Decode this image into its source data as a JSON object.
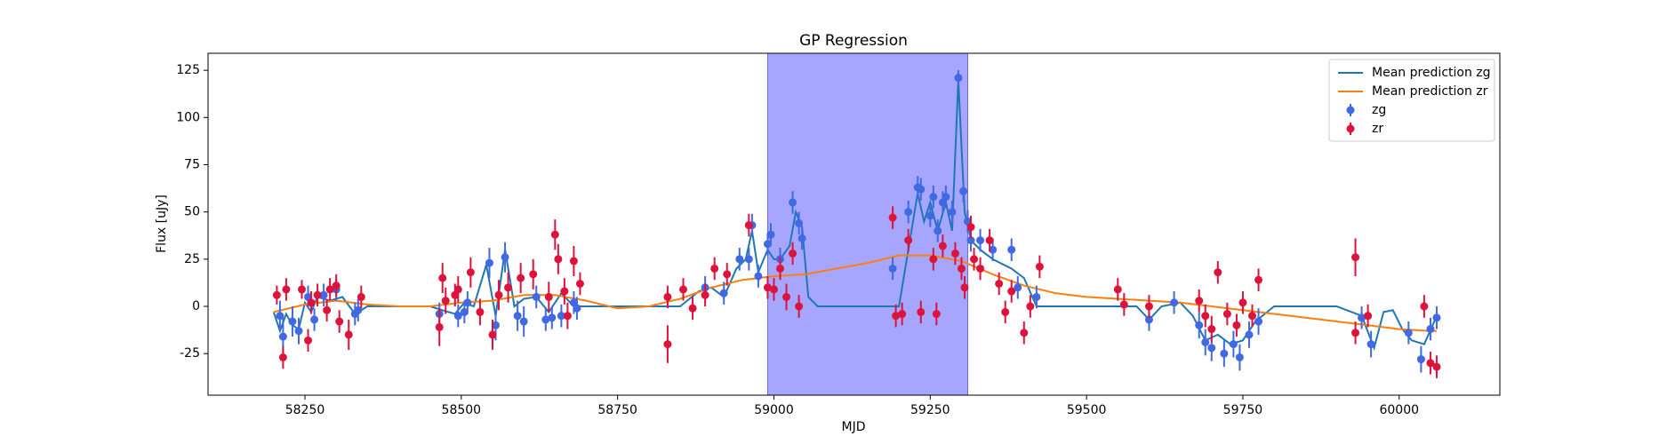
{
  "chart_data": {
    "type": "errorbar",
    "title": "GP Regression",
    "xlabel": "MJD",
    "ylabel": "Flux [uJy]",
    "xlim": [
      58095,
      60161
    ],
    "ylim": [
      -47,
      134
    ],
    "xticks": [
      58250,
      58500,
      58750,
      59000,
      59250,
      59500,
      59750,
      60000
    ],
    "yticks": [
      -25,
      0,
      25,
      50,
      75,
      100,
      125
    ],
    "shaded_x": [
      58990,
      59310
    ],
    "shaded_color": "#0000ff",
    "legend": "upper right",
    "series": [
      {
        "name": "Mean prediction zg",
        "type": "line",
        "color": "#1f77b4",
        "x": [
          58200,
          58210,
          58220,
          58230,
          58240,
          58250,
          58260,
          58270,
          58290,
          58310,
          58330,
          58350,
          58400,
          58450,
          58470,
          58490,
          58505,
          58520,
          58540,
          58555,
          58570,
          58585,
          58600,
          58620,
          58640,
          58660,
          58680,
          58700,
          58850,
          58880,
          58900,
          58920,
          58940,
          58955,
          58965,
          58975,
          58990,
          59000,
          59010,
          59025,
          59035,
          59045,
          59055,
          59070,
          59200,
          59215,
          59230,
          59240,
          59250,
          59262,
          59275,
          59285,
          59295,
          59305,
          59315,
          59330,
          59350,
          59380,
          59400,
          59420,
          59450,
          59580,
          59600,
          59620,
          59650,
          59670,
          59690,
          59710,
          59730,
          59750,
          59770,
          59800,
          59900,
          59940,
          59960,
          59975,
          59990,
          60005,
          60020,
          60040,
          60060
        ],
        "values": [
          -3,
          -13,
          -4,
          -10,
          -12,
          2,
          -3,
          5,
          3,
          5,
          -4,
          0,
          0,
          0,
          -2,
          -4,
          2,
          0,
          22,
          -5,
          30,
          0,
          4,
          5,
          -3,
          7,
          0,
          0,
          0,
          8,
          10,
          5,
          20,
          25,
          40,
          18,
          30,
          25,
          25,
          32,
          50,
          42,
          5,
          0,
          0,
          30,
          60,
          45,
          55,
          40,
          55,
          40,
          120,
          50,
          35,
          30,
          25,
          20,
          15,
          0,
          0,
          0,
          -7,
          0,
          2,
          -5,
          -18,
          -15,
          -20,
          -18,
          -8,
          0,
          0,
          -5,
          -22,
          -3,
          -2,
          -12,
          -18,
          -20,
          -5
        ]
      },
      {
        "name": "Mean prediction zr",
        "type": "line",
        "color": "#ff7f0e",
        "x": [
          58200,
          58250,
          58300,
          58350,
          58400,
          58450,
          58500,
          58550,
          58600,
          58650,
          58700,
          58750,
          58800,
          58850,
          58900,
          58950,
          59000,
          59050,
          59100,
          59150,
          59200,
          59250,
          59300,
          59350,
          59400,
          59450,
          59500,
          59550,
          59600,
          59650,
          59700,
          59750,
          59800,
          59850,
          59900,
          59950,
          60000,
          60050,
          60060
        ],
        "values": [
          -3,
          1,
          3,
          1,
          0,
          0,
          2,
          3,
          6,
          6,
          3,
          -1,
          0,
          4,
          10,
          14,
          16,
          17,
          20,
          23,
          27,
          27,
          24,
          17,
          11,
          7,
          5,
          4,
          3,
          2,
          0,
          -2,
          -4,
          -6,
          -8,
          -10,
          -12,
          -13,
          -13
        ]
      },
      {
        "name": "zg",
        "type": "errorbar",
        "color": "#4169e1",
        "x": [
          58210,
          58215,
          58230,
          58240,
          58255,
          58265,
          58280,
          58300,
          58330,
          58335,
          58465,
          58495,
          58505,
          58510,
          58545,
          58555,
          58570,
          58590,
          58600,
          58620,
          58635,
          58645,
          58660,
          58680,
          58685,
          58890,
          58920,
          58945,
          58960,
          58965,
          58975,
          58990,
          58995,
          59010,
          59030,
          59040,
          59045,
          59190,
          59215,
          59230,
          59235,
          59250,
          59255,
          59262,
          59270,
          59275,
          59285,
          59295,
          59303,
          59310,
          59315,
          59330,
          59350,
          59380,
          59390,
          59420,
          59600,
          59640,
          59680,
          59690,
          59700,
          59720,
          59735,
          59745,
          59760,
          59775,
          59940,
          59955,
          60015,
          60035,
          60050,
          60060
        ],
        "values": [
          -5,
          -16,
          -8,
          -13,
          5,
          -7,
          6,
          9,
          -4,
          -2,
          -4,
          -5,
          -3,
          2,
          23,
          -10,
          26,
          -5,
          -8,
          5,
          -7,
          -6,
          -5,
          2,
          -1,
          10,
          7,
          25,
          25,
          43,
          16,
          33,
          38,
          25,
          55,
          44,
          36,
          20,
          50,
          63,
          62,
          48,
          58,
          40,
          55,
          58,
          50,
          121,
          61,
          45,
          35,
          35,
          30,
          30,
          10,
          5,
          -7,
          2,
          -10,
          -19,
          -22,
          -25,
          -20,
          -27,
          -15,
          -8,
          -6,
          -20,
          -14,
          -28,
          -12,
          -6
        ],
        "errors": [
          8,
          10,
          8,
          7,
          6,
          6,
          6,
          6,
          6,
          6,
          6,
          6,
          6,
          6,
          8,
          8,
          8,
          8,
          8,
          6,
          6,
          6,
          6,
          6,
          6,
          6,
          6,
          6,
          6,
          6,
          6,
          6,
          6,
          6,
          6,
          6,
          6,
          6,
          6,
          6,
          6,
          6,
          6,
          6,
          6,
          6,
          6,
          4,
          6,
          6,
          6,
          6,
          6,
          6,
          6,
          6,
          6,
          6,
          7,
          7,
          7,
          7,
          7,
          7,
          7,
          7,
          6,
          7,
          6,
          7,
          6,
          6
        ]
      },
      {
        "name": "zr",
        "type": "errorbar",
        "color": "#dc143c",
        "x": [
          58205,
          58215,
          58220,
          58245,
          58255,
          58260,
          58270,
          58285,
          58290,
          58300,
          58305,
          58320,
          58340,
          58465,
          58470,
          58475,
          58490,
          58495,
          58515,
          58530,
          58550,
          58560,
          58575,
          58595,
          58615,
          58640,
          58650,
          58655,
          58665,
          58670,
          58680,
          58690,
          58830,
          58830,
          58855,
          58870,
          58890,
          58905,
          58925,
          58960,
          58990,
          59000,
          59010,
          59020,
          59030,
          59040,
          59190,
          59195,
          59205,
          59215,
          59235,
          59255,
          59260,
          59270,
          59290,
          59300,
          59305,
          59315,
          59320,
          59330,
          59345,
          59360,
          59370,
          59380,
          59400,
          59410,
          59425,
          59550,
          59560,
          59600,
          59680,
          59690,
          59700,
          59710,
          59725,
          59740,
          59750,
          59765,
          59775,
          59930,
          59930,
          59950,
          60040,
          60050,
          60060
        ],
        "values": [
          6,
          -27,
          9,
          9,
          -18,
          2,
          6,
          -2,
          9,
          11,
          -8,
          -15,
          5,
          -11,
          15,
          3,
          6,
          9,
          18,
          -3,
          -15,
          6,
          10,
          15,
          17,
          5,
          38,
          25,
          8,
          -5,
          24,
          12,
          -20,
          5,
          9,
          -1,
          6,
          20,
          17,
          43,
          10,
          9,
          20,
          5,
          28,
          0,
          47,
          -5,
          -4,
          35,
          -3,
          25,
          -4,
          32,
          28,
          20,
          10,
          42,
          25,
          20,
          35,
          12,
          -3,
          8,
          -14,
          0,
          21,
          9,
          1,
          0,
          3,
          -5,
          -12,
          18,
          -4,
          -10,
          2,
          -5,
          14,
          26,
          -14,
          -5,
          0,
          -30,
          -32
        ],
        "errors": [
          5,
          6,
          6,
          5,
          6,
          6,
          6,
          6,
          6,
          6,
          6,
          8,
          6,
          10,
          8,
          7,
          6,
          7,
          8,
          7,
          8,
          8,
          8,
          8,
          8,
          8,
          8,
          8,
          7,
          7,
          8,
          6,
          10,
          6,
          6,
          6,
          6,
          6,
          6,
          6,
          6,
          6,
          6,
          7,
          6,
          6,
          6,
          6,
          6,
          6,
          6,
          6,
          6,
          6,
          6,
          6,
          6,
          6,
          6,
          6,
          6,
          6,
          6,
          6,
          6,
          6,
          6,
          6,
          6,
          6,
          6,
          6,
          7,
          6,
          6,
          6,
          6,
          6,
          6,
          10,
          6,
          6,
          6,
          6,
          6
        ]
      }
    ]
  }
}
